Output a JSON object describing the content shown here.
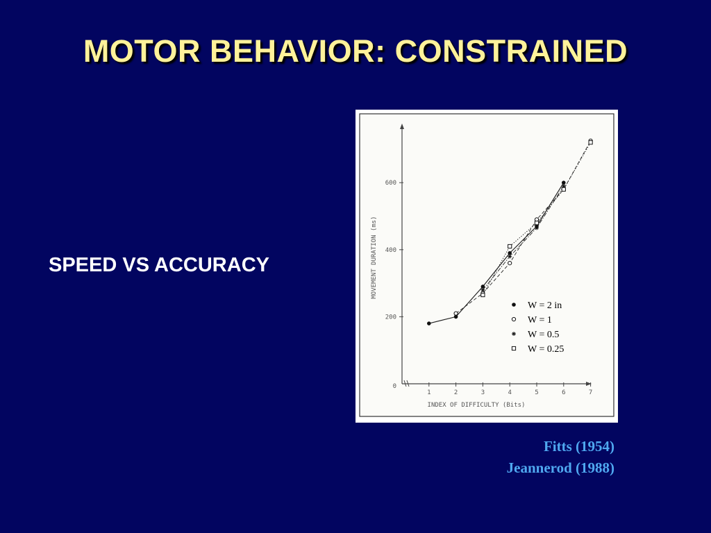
{
  "slide": {
    "title": "MOTOR BEHAVIOR: CONSTRAINED",
    "subtitle": "SPEED VS ACCURACY",
    "citations": [
      "Fitts (1954)",
      "Jeannerod (1988)"
    ]
  },
  "colors": {
    "background": "#020560",
    "title": "#fff29a",
    "subtitle": "#ffffff",
    "citation": "#4fa8f0"
  },
  "chart_data": {
    "type": "line",
    "xlabel": "INDEX  OF  DIFFICULTY  (Bits)",
    "ylabel": "MOVEMENT  DURATION  (ms)",
    "xlim": [
      0,
      7
    ],
    "ylim": [
      0,
      700
    ],
    "x_ticks": [
      "1",
      "2",
      "3",
      "4",
      "5",
      "6",
      "7"
    ],
    "y_ticks": [
      "0",
      "200",
      "400",
      "600"
    ],
    "legend_position": "inside-right",
    "series": [
      {
        "name": "W = 2 in",
        "marker": "filled-circle",
        "line": "solid",
        "points": [
          [
            1,
            180
          ],
          [
            2,
            200
          ],
          [
            3,
            290
          ],
          [
            4,
            390
          ],
          [
            5,
            470
          ],
          [
            6,
            600
          ]
        ]
      },
      {
        "name": "W = 1",
        "marker": "open-circle",
        "line": "dashed",
        "points": [
          [
            2,
            210
          ],
          [
            3,
            270
          ],
          [
            4,
            360
          ],
          [
            5,
            490
          ],
          [
            6,
            580
          ],
          [
            7,
            725
          ]
        ]
      },
      {
        "name": "W = 0.5",
        "marker": "asterisk",
        "line": "dash-dot",
        "points": [
          [
            3,
            280
          ],
          [
            4,
            380
          ],
          [
            5,
            465
          ],
          [
            6,
            590
          ]
        ]
      },
      {
        "name": "W = 0.25",
        "marker": "open-square",
        "line": "dotted",
        "points": [
          [
            3,
            265
          ],
          [
            4,
            410
          ],
          [
            5,
            480
          ],
          [
            6,
            580
          ],
          [
            7,
            720
          ]
        ]
      }
    ]
  }
}
